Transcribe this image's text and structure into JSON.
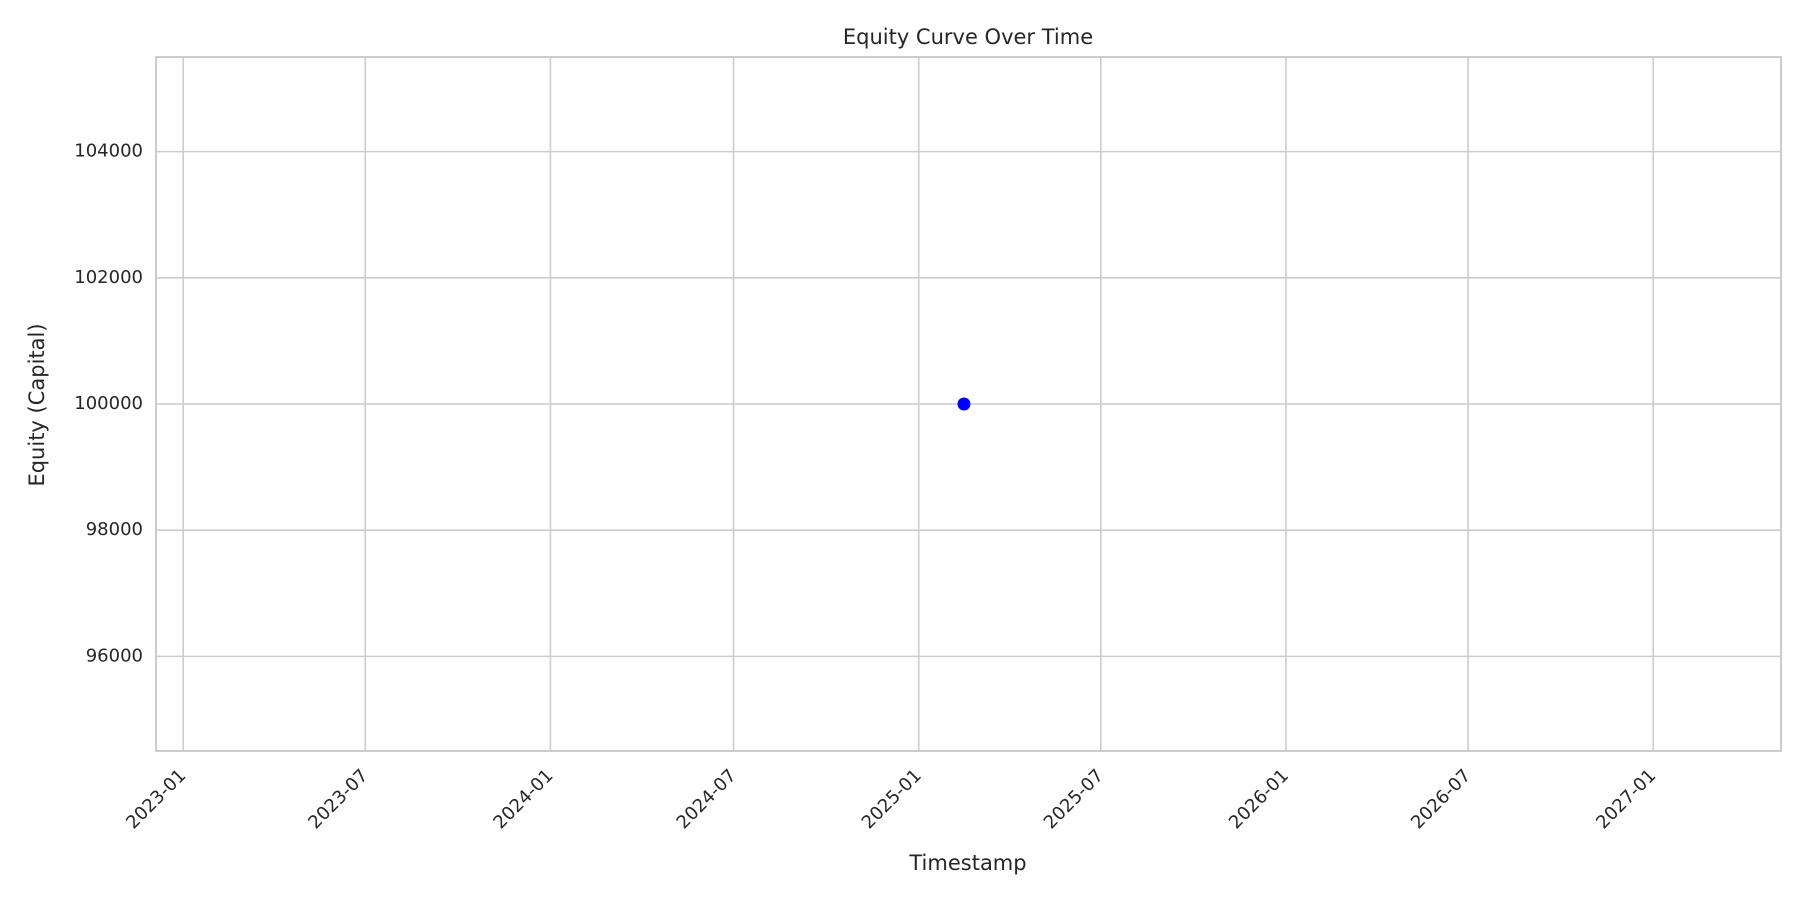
{
  "chart_data": {
    "type": "scatter",
    "title": "Equity Curve Over Time",
    "xlabel": "Timestamp",
    "ylabel": "Equity (Capital)",
    "x_ticks": [
      "2023-01",
      "2023-07",
      "2024-01",
      "2024-07",
      "2025-01",
      "2025-07",
      "2026-01",
      "2026-07",
      "2027-01"
    ],
    "y_ticks": [
      "96000",
      "98000",
      "100000",
      "102000",
      "104000"
    ],
    "xlim": [
      "2022-12-05",
      "2027-05-08"
    ],
    "ylim": [
      94500,
      105500
    ],
    "grid": true,
    "legend": "none",
    "series": [
      {
        "color": "#0000ff",
        "points": [
          {
            "x": "2025-02-15",
            "y": 100000
          }
        ]
      }
    ]
  },
  "colors": {
    "background": "#ffffff",
    "grid": "#cccccc",
    "axes_edge": "#cccccc",
    "text": "#262626",
    "point": "#0000ff"
  }
}
